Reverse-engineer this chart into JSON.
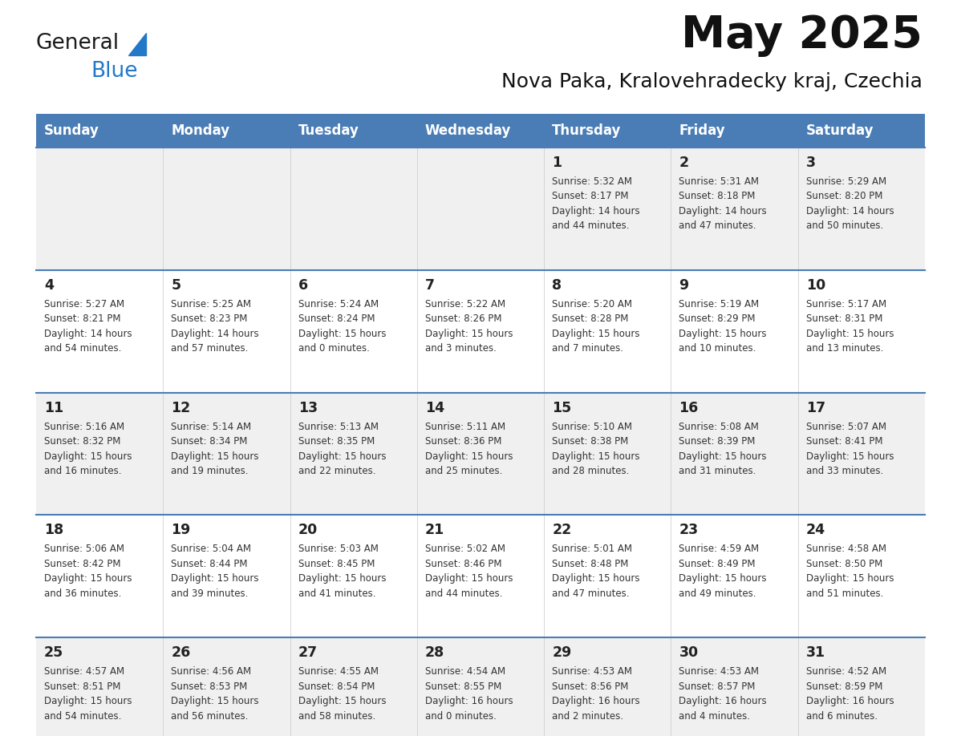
{
  "title": "May 2025",
  "subtitle": "Nova Paka, Kralovehradecky kraj, Czechia",
  "header_bg": "#4a7db5",
  "header_text": "#ffffff",
  "row_bg_odd": "#f0f0f0",
  "row_bg_even": "#ffffff",
  "days_of_week": [
    "Sunday",
    "Monday",
    "Tuesday",
    "Wednesday",
    "Thursday",
    "Friday",
    "Saturday"
  ],
  "cell_text_color": "#333333",
  "day_num_color": "#222222",
  "line_color": "#4a7db5",
  "calendar_data": [
    [
      {
        "day": "",
        "info": ""
      },
      {
        "day": "",
        "info": ""
      },
      {
        "day": "",
        "info": ""
      },
      {
        "day": "",
        "info": ""
      },
      {
        "day": "1",
        "info": "Sunrise: 5:32 AM\nSunset: 8:17 PM\nDaylight: 14 hours\nand 44 minutes."
      },
      {
        "day": "2",
        "info": "Sunrise: 5:31 AM\nSunset: 8:18 PM\nDaylight: 14 hours\nand 47 minutes."
      },
      {
        "day": "3",
        "info": "Sunrise: 5:29 AM\nSunset: 8:20 PM\nDaylight: 14 hours\nand 50 minutes."
      }
    ],
    [
      {
        "day": "4",
        "info": "Sunrise: 5:27 AM\nSunset: 8:21 PM\nDaylight: 14 hours\nand 54 minutes."
      },
      {
        "day": "5",
        "info": "Sunrise: 5:25 AM\nSunset: 8:23 PM\nDaylight: 14 hours\nand 57 minutes."
      },
      {
        "day": "6",
        "info": "Sunrise: 5:24 AM\nSunset: 8:24 PM\nDaylight: 15 hours\nand 0 minutes."
      },
      {
        "day": "7",
        "info": "Sunrise: 5:22 AM\nSunset: 8:26 PM\nDaylight: 15 hours\nand 3 minutes."
      },
      {
        "day": "8",
        "info": "Sunrise: 5:20 AM\nSunset: 8:28 PM\nDaylight: 15 hours\nand 7 minutes."
      },
      {
        "day": "9",
        "info": "Sunrise: 5:19 AM\nSunset: 8:29 PM\nDaylight: 15 hours\nand 10 minutes."
      },
      {
        "day": "10",
        "info": "Sunrise: 5:17 AM\nSunset: 8:31 PM\nDaylight: 15 hours\nand 13 minutes."
      }
    ],
    [
      {
        "day": "11",
        "info": "Sunrise: 5:16 AM\nSunset: 8:32 PM\nDaylight: 15 hours\nand 16 minutes."
      },
      {
        "day": "12",
        "info": "Sunrise: 5:14 AM\nSunset: 8:34 PM\nDaylight: 15 hours\nand 19 minutes."
      },
      {
        "day": "13",
        "info": "Sunrise: 5:13 AM\nSunset: 8:35 PM\nDaylight: 15 hours\nand 22 minutes."
      },
      {
        "day": "14",
        "info": "Sunrise: 5:11 AM\nSunset: 8:36 PM\nDaylight: 15 hours\nand 25 minutes."
      },
      {
        "day": "15",
        "info": "Sunrise: 5:10 AM\nSunset: 8:38 PM\nDaylight: 15 hours\nand 28 minutes."
      },
      {
        "day": "16",
        "info": "Sunrise: 5:08 AM\nSunset: 8:39 PM\nDaylight: 15 hours\nand 31 minutes."
      },
      {
        "day": "17",
        "info": "Sunrise: 5:07 AM\nSunset: 8:41 PM\nDaylight: 15 hours\nand 33 minutes."
      }
    ],
    [
      {
        "day": "18",
        "info": "Sunrise: 5:06 AM\nSunset: 8:42 PM\nDaylight: 15 hours\nand 36 minutes."
      },
      {
        "day": "19",
        "info": "Sunrise: 5:04 AM\nSunset: 8:44 PM\nDaylight: 15 hours\nand 39 minutes."
      },
      {
        "day": "20",
        "info": "Sunrise: 5:03 AM\nSunset: 8:45 PM\nDaylight: 15 hours\nand 41 minutes."
      },
      {
        "day": "21",
        "info": "Sunrise: 5:02 AM\nSunset: 8:46 PM\nDaylight: 15 hours\nand 44 minutes."
      },
      {
        "day": "22",
        "info": "Sunrise: 5:01 AM\nSunset: 8:48 PM\nDaylight: 15 hours\nand 47 minutes."
      },
      {
        "day": "23",
        "info": "Sunrise: 4:59 AM\nSunset: 8:49 PM\nDaylight: 15 hours\nand 49 minutes."
      },
      {
        "day": "24",
        "info": "Sunrise: 4:58 AM\nSunset: 8:50 PM\nDaylight: 15 hours\nand 51 minutes."
      }
    ],
    [
      {
        "day": "25",
        "info": "Sunrise: 4:57 AM\nSunset: 8:51 PM\nDaylight: 15 hours\nand 54 minutes."
      },
      {
        "day": "26",
        "info": "Sunrise: 4:56 AM\nSunset: 8:53 PM\nDaylight: 15 hours\nand 56 minutes."
      },
      {
        "day": "27",
        "info": "Sunrise: 4:55 AM\nSunset: 8:54 PM\nDaylight: 15 hours\nand 58 minutes."
      },
      {
        "day": "28",
        "info": "Sunrise: 4:54 AM\nSunset: 8:55 PM\nDaylight: 16 hours\nand 0 minutes."
      },
      {
        "day": "29",
        "info": "Sunrise: 4:53 AM\nSunset: 8:56 PM\nDaylight: 16 hours\nand 2 minutes."
      },
      {
        "day": "30",
        "info": "Sunrise: 4:53 AM\nSunset: 8:57 PM\nDaylight: 16 hours\nand 4 minutes."
      },
      {
        "day": "31",
        "info": "Sunrise: 4:52 AM\nSunset: 8:59 PM\nDaylight: 16 hours\nand 6 minutes."
      }
    ]
  ],
  "logo_general_color": "#1a1a1a",
  "logo_blue_color": "#2478c8",
  "logo_triangle_color": "#2478c8",
  "fig_width": 11.88,
  "fig_height": 9.18,
  "dpi": 100
}
